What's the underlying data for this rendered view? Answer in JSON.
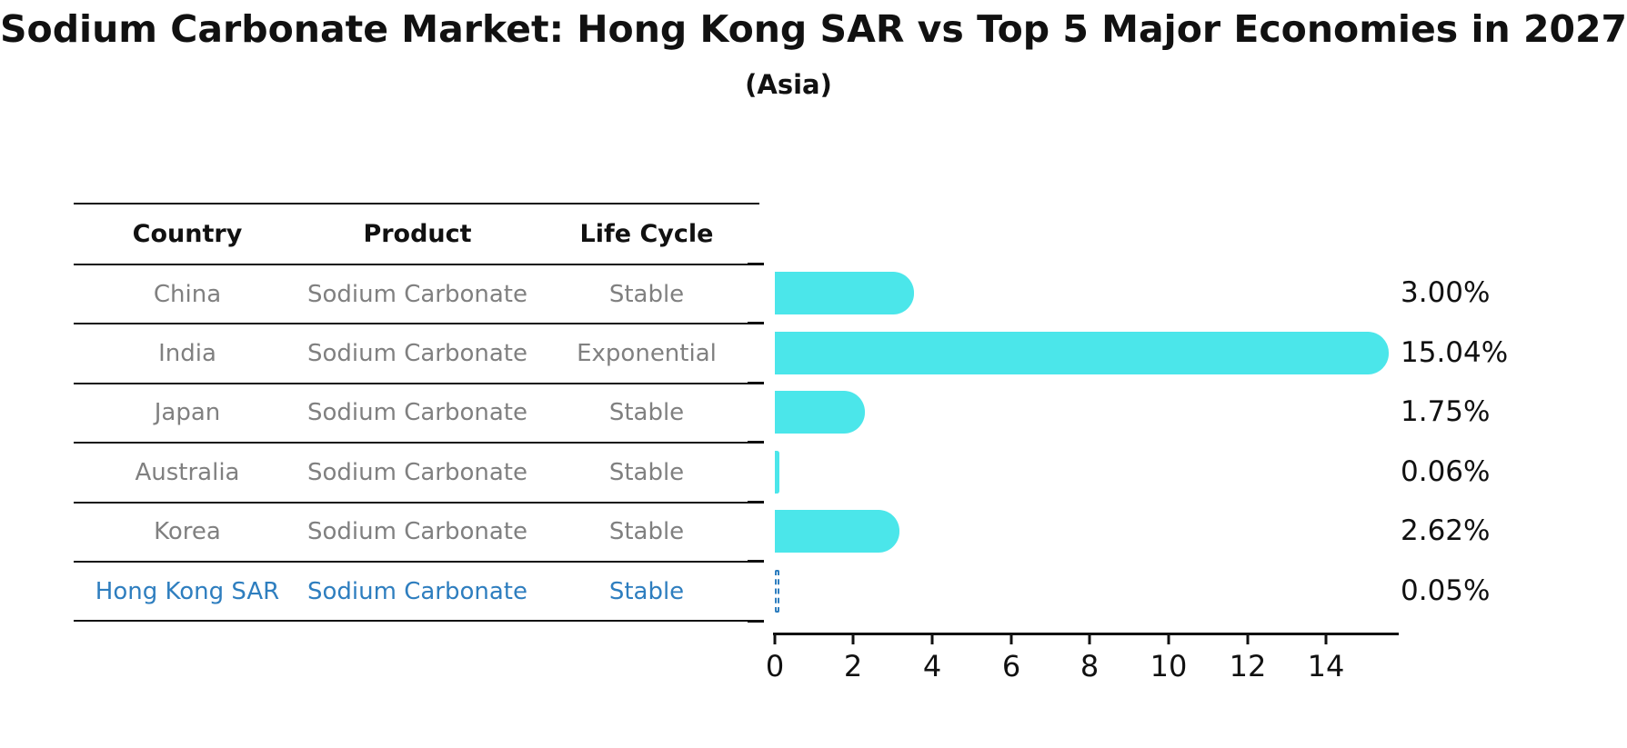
{
  "title": "Sodium Carbonate Market: Hong Kong SAR vs Top 5 Major Economies in 2027",
  "subtitle": "(Asia)",
  "table": {
    "headers": [
      "Country",
      "Product",
      "Life Cycle"
    ],
    "rows": [
      {
        "country": "China",
        "product": "Sodium Carbonate",
        "life_cycle": "Stable",
        "highlight": false
      },
      {
        "country": "India",
        "product": "Sodium Carbonate",
        "life_cycle": "Exponential",
        "highlight": false
      },
      {
        "country": "Japan",
        "product": "Sodium Carbonate",
        "life_cycle": "Stable",
        "highlight": false
      },
      {
        "country": "Australia",
        "product": "Sodium Carbonate",
        "life_cycle": "Stable",
        "highlight": false
      },
      {
        "country": "Korea",
        "product": "Sodium Carbonate",
        "life_cycle": "Stable",
        "highlight": false
      },
      {
        "country": "Hong Kong SAR",
        "product": "Sodium Carbonate",
        "life_cycle": "Stable",
        "highlight": true
      }
    ]
  },
  "chart_data": {
    "type": "bar",
    "orientation": "horizontal",
    "title": "Sodium Carbonate Market: Hong Kong SAR vs Top 5 Major Economies in 2027",
    "subtitle": "(Asia)",
    "categories": [
      "China",
      "India",
      "Japan",
      "Australia",
      "Korea",
      "Hong Kong SAR"
    ],
    "values": [
      3.0,
      15.04,
      1.75,
      0.06,
      2.62,
      0.05
    ],
    "value_labels": [
      "3.00%",
      "15.04%",
      "1.75%",
      "0.06%",
      "2.62%",
      "0.05%"
    ],
    "xlabel": "",
    "ylabel": "",
    "xlim": [
      0,
      15.8
    ],
    "xticks": [
      0,
      2,
      4,
      6,
      8,
      10,
      12,
      14
    ],
    "grid": false,
    "legend": false,
    "bar_color": "#4BE6EA",
    "highlight_color": "#2E7EBF",
    "highlight_index": 5,
    "highlight_style": "dashed-outline"
  },
  "colors": {
    "background": "#ffffff",
    "text": "#111111",
    "table_text_muted": "#808080",
    "table_rule": "#111111",
    "bar": "#4BE6EA",
    "highlight": "#2E7EBF"
  }
}
